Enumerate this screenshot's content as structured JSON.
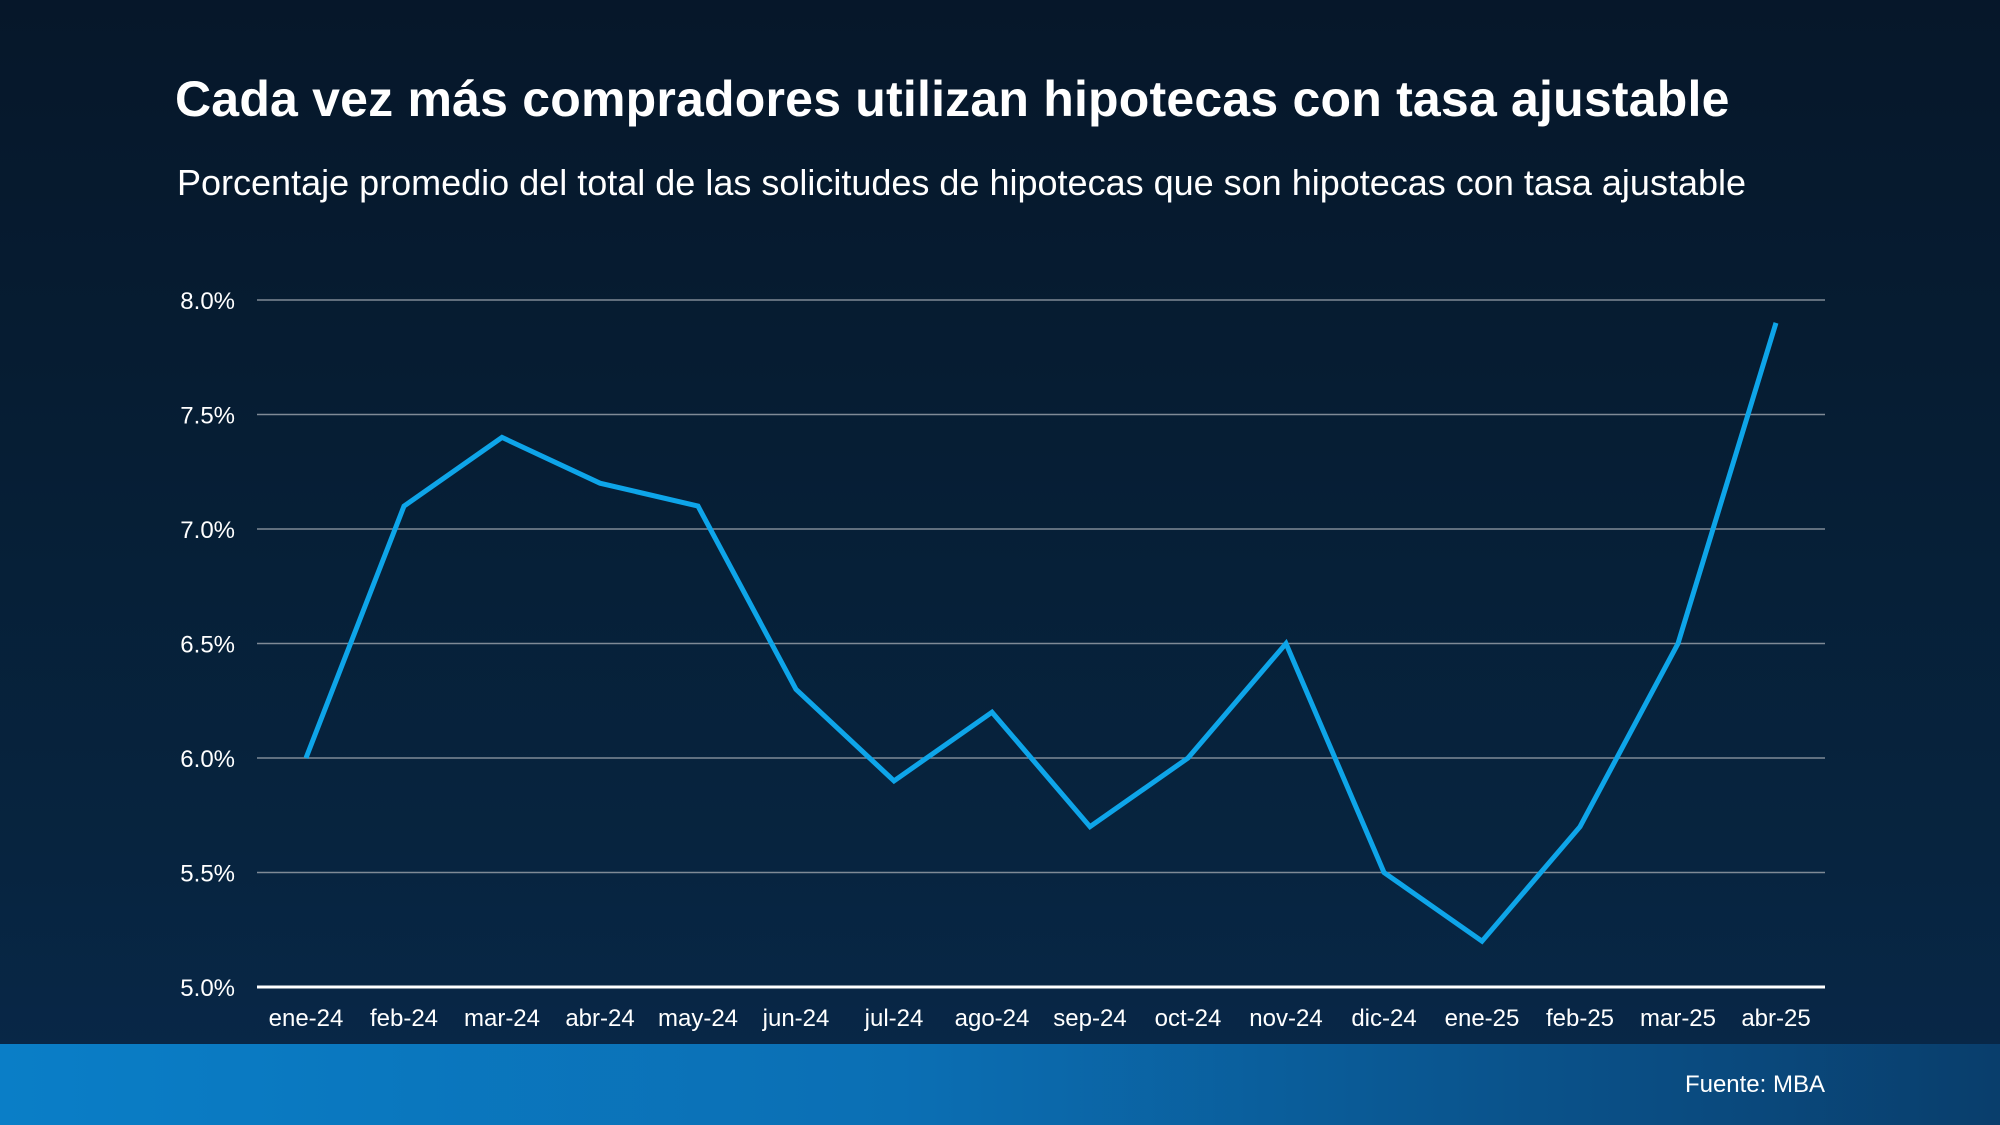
{
  "chart_data": {
    "type": "line",
    "title": "Cada vez más compradores utilizan hipotecas con tasa ajustable",
    "subtitle": "Porcentaje promedio del total de las solicitudes de hipotecas que son hipotecas con tasa ajustable",
    "categories": [
      "ene-24",
      "feb-24",
      "mar-24",
      "abr-24",
      "may-24",
      "jun-24",
      "jul-24",
      "ago-24",
      "sep-24",
      "oct-24",
      "nov-24",
      "dic-24",
      "ene-25",
      "feb-25",
      "mar-25",
      "abr-25"
    ],
    "series": [
      {
        "name": "Hipotecas con tasa ajustable",
        "values": [
          6.0,
          7.1,
          7.4,
          7.2,
          7.1,
          6.3,
          5.9,
          6.2,
          5.7,
          6.0,
          6.5,
          5.5,
          5.2,
          5.7,
          6.5,
          7.9
        ],
        "color": "#0ea5e9"
      }
    ],
    "yticks": [
      "8.0%",
      "7.5%",
      "7.0%",
      "6.5%",
      "6.0%",
      "5.5%",
      "5.0%"
    ],
    "ylim": [
      5.0,
      8.0
    ],
    "ystep": 0.5,
    "xlabel": "",
    "ylabel": "",
    "grid": true,
    "legend": "none"
  },
  "source": "Fuente: MBA",
  "colors": {
    "line": "#0ea5e9",
    "grid": "#7f8a96",
    "axis": "#ffffff",
    "text": "#ffffff"
  }
}
